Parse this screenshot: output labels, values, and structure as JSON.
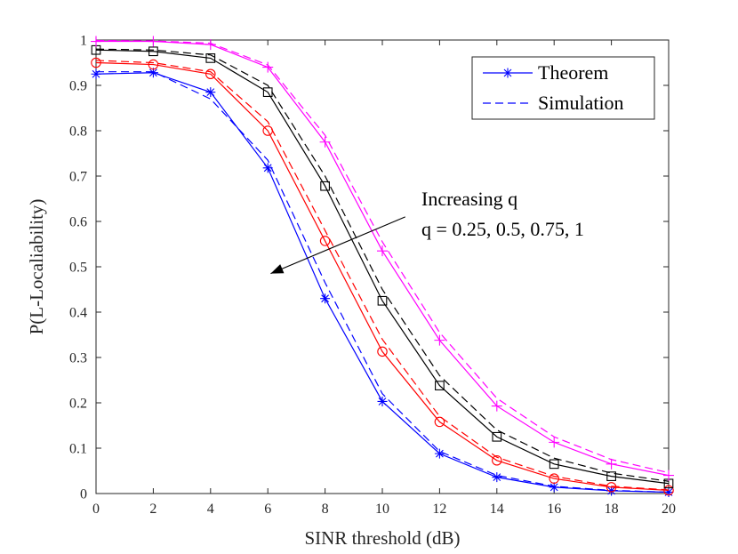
{
  "chart_data": {
    "type": "line",
    "title": "",
    "xlabel": "SINR threshold (dB)",
    "ylabel": "P(L-Localiability)",
    "xlim": [
      0,
      20
    ],
    "ylim": [
      0,
      1
    ],
    "xticks": [
      0,
      2,
      4,
      6,
      8,
      10,
      12,
      14,
      16,
      18,
      20
    ],
    "yticks": [
      0,
      0.1,
      0.2,
      0.3,
      0.4,
      0.5,
      0.6,
      0.7,
      0.8,
      0.9,
      1
    ],
    "xtick_labels": [
      "0",
      "2",
      "4",
      "6",
      "8",
      "10",
      "12",
      "14",
      "16",
      "18",
      "20"
    ],
    "ytick_labels": [
      "0",
      "0.1",
      "0.2",
      "0.3",
      "0.4",
      "0.5",
      "0.6",
      "0.7",
      "0.8",
      "0.9",
      "1"
    ],
    "x": [
      0,
      2,
      4,
      6,
      8,
      10,
      12,
      14,
      16,
      18,
      20
    ],
    "legend": {
      "position": "top-right",
      "entries": [
        {
          "label": "Theorem",
          "style": "solid",
          "marker": "asterisk",
          "color": "#0000ff"
        },
        {
          "label": "Simulation",
          "style": "dashed",
          "marker": "none",
          "color": "#0000ff"
        }
      ]
    },
    "annotation": {
      "lines": [
        "Increasing q",
        "q = 0.25, 0.5, 0.75, 1"
      ],
      "arrow_start": [
        10.8,
        0.61
      ],
      "arrow_end": [
        6.1,
        0.485
      ]
    },
    "series": [
      {
        "name": "q = 0.25 Theorem",
        "color": "#0000ff",
        "style": "solid",
        "marker": "asterisk",
        "values": [
          0.925,
          0.928,
          0.885,
          0.718,
          0.43,
          0.203,
          0.088,
          0.036,
          0.014,
          0.006,
          0.003
        ]
      },
      {
        "name": "q = 0.25 Simulation",
        "color": "#0000ff",
        "style": "dashed",
        "marker": "none",
        "values": [
          0.93,
          0.93,
          0.87,
          0.735,
          0.465,
          0.22,
          0.093,
          0.04,
          0.016,
          0.007,
          0.003
        ]
      },
      {
        "name": "q = 0.5 Theorem",
        "color": "#ff0000",
        "style": "solid",
        "marker": "circle",
        "values": [
          0.95,
          0.946,
          0.925,
          0.8,
          0.557,
          0.313,
          0.158,
          0.073,
          0.033,
          0.014,
          0.007
        ]
      },
      {
        "name": "q = 0.5 Simulation",
        "color": "#ff0000",
        "style": "dashed",
        "marker": "none",
        "values": [
          0.955,
          0.95,
          0.93,
          0.82,
          0.58,
          0.34,
          0.17,
          0.08,
          0.038,
          0.016,
          0.008
        ]
      },
      {
        "name": "q = 0.75 Theorem",
        "color": "#000000",
        "style": "solid",
        "marker": "square",
        "values": [
          0.978,
          0.975,
          0.96,
          0.885,
          0.678,
          0.425,
          0.238,
          0.125,
          0.065,
          0.038,
          0.022
        ]
      },
      {
        "name": "q = 0.75 Simulation",
        "color": "#000000",
        "style": "dashed",
        "marker": "none",
        "values": [
          0.98,
          0.978,
          0.967,
          0.9,
          0.7,
          0.45,
          0.26,
          0.14,
          0.078,
          0.045,
          0.027
        ]
      },
      {
        "name": "q = 1 Theorem",
        "color": "#ff00ff",
        "style": "solid",
        "marker": "plus",
        "values": [
          0.997,
          0.997,
          0.99,
          0.94,
          0.775,
          0.535,
          0.338,
          0.193,
          0.113,
          0.065,
          0.04
        ]
      },
      {
        "name": "q = 1 Simulation",
        "color": "#ff00ff",
        "style": "dashed",
        "marker": "none",
        "values": [
          0.999,
          0.998,
          0.993,
          0.945,
          0.79,
          0.555,
          0.355,
          0.21,
          0.125,
          0.075,
          0.046
        ]
      }
    ]
  }
}
